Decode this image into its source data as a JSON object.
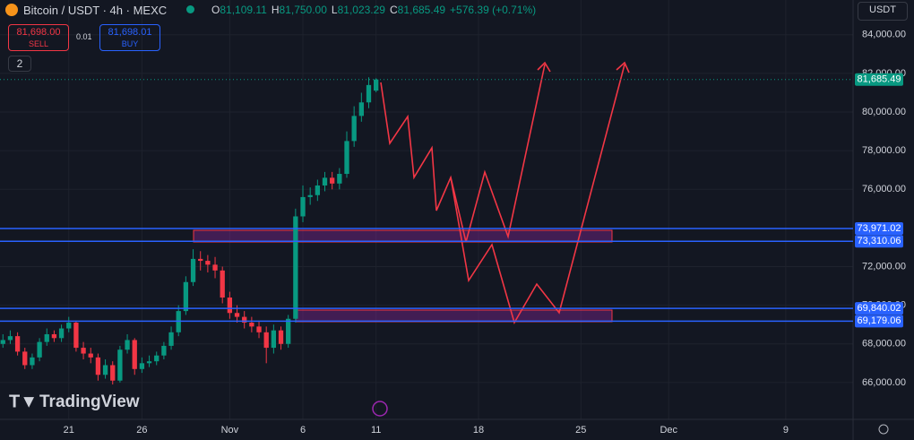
{
  "header": {
    "symbol": "Bitcoin / USDT · 4h · MEXC",
    "ohlc": [
      {
        "key": "O",
        "value": "81,109.11"
      },
      {
        "key": "H",
        "value": "81,750.00"
      },
      {
        "key": "L",
        "value": "81,023.29"
      },
      {
        "key": "C",
        "value": "81,685.49"
      }
    ],
    "change": "+576.39 (+0.71%)"
  },
  "trade": {
    "sell_price": "81,698.00",
    "sell": "SELL",
    "spread": "0.01",
    "buy_price": "81,698.01",
    "buy": "BUY"
  },
  "indicators_count": "2",
  "currency": "USDT",
  "watermark": "TradingView",
  "chart_data": {
    "type": "candlestick",
    "up_color": "#089981",
    "down_color": "#f23645",
    "x": [
      16.5,
      17,
      17.5,
      18,
      18.5,
      19,
      19.5,
      20,
      20.5,
      21,
      21.5,
      22,
      22.5,
      23,
      23.5,
      24,
      24.5,
      25,
      25.5,
      26,
      26.5,
      27,
      27.5,
      28,
      28.5,
      29,
      29.5,
      30,
      30.5,
      31,
      31.5,
      32,
      32.5,
      33,
      33.5,
      34,
      34.5,
      35,
      35.5,
      36,
      36.5,
      37,
      37.5,
      38,
      38.5,
      39,
      39.5,
      40,
      40.5,
      41,
      41.5,
      42
    ],
    "open": [
      68000,
      68200,
      68400,
      67600,
      66900,
      67300,
      68100,
      68500,
      68300,
      68800,
      69100,
      67800,
      67500,
      67300,
      66400,
      66900,
      66100,
      67700,
      68200,
      66700,
      67000,
      67100,
      67400,
      67900,
      68600,
      69700,
      71200,
      72400,
      72300,
      72100,
      71800,
      70400,
      69600,
      69400,
      69100,
      68900,
      68600,
      67800,
      68700,
      68000,
      69300,
      74600,
      75600,
      75700,
      76200,
      76600,
      76300,
      76800,
      78500,
      79800,
      80500,
      81109.11
    ],
    "high": [
      68500,
      68700,
      68600,
      67800,
      67500,
      68300,
      68800,
      68700,
      69000,
      69400,
      69200,
      68100,
      67800,
      67500,
      67200,
      67100,
      67900,
      68500,
      68300,
      67300,
      67400,
      67600,
      68100,
      68900,
      70000,
      71500,
      72900,
      72800,
      72600,
      72500,
      72000,
      70700,
      70000,
      69700,
      69400,
      69200,
      68900,
      69000,
      68900,
      69500,
      75000,
      76200,
      76100,
      76500,
      76900,
      76900,
      77100,
      79000,
      80300,
      81000,
      81800,
      81750
    ],
    "low": [
      67800,
      68000,
      67400,
      66700,
      66700,
      67100,
      67900,
      68100,
      68100,
      68600,
      67600,
      67200,
      67000,
      66100,
      66200,
      65900,
      66000,
      67500,
      66400,
      66500,
      66800,
      66900,
      67200,
      67700,
      68400,
      69500,
      71000,
      71800,
      71700,
      71400,
      70100,
      69300,
      69100,
      68800,
      68600,
      68300,
      67000,
      67500,
      67700,
      67800,
      69100,
      74300,
      75200,
      75400,
      75900,
      76000,
      76000,
      76600,
      78200,
      79500,
      80200,
      81023.29
    ],
    "close": [
      68200,
      68400,
      67600,
      66900,
      67300,
      68100,
      68500,
      68300,
      68800,
      69100,
      67800,
      67500,
      67300,
      66400,
      66900,
      66100,
      67700,
      68200,
      66700,
      67000,
      67100,
      67400,
      67900,
      68600,
      69700,
      71200,
      72400,
      72300,
      72100,
      71800,
      70400,
      69600,
      69400,
      69100,
      68900,
      68600,
      67800,
      68700,
      68000,
      69300,
      74600,
      75600,
      75700,
      76200,
      76600,
      76300,
      76800,
      78500,
      79800,
      80500,
      81400,
      81685.49
    ],
    "xlim": [
      16.3,
      74.6
    ],
    "ylim": [
      64000,
      85800
    ],
    "xticks": [
      21,
      26,
      {
        "value": 32,
        "label": "Nov"
      },
      {
        "value": 37,
        "label": "6"
      },
      {
        "value": 42,
        "label": "11"
      },
      {
        "value": 49,
        "label": "18"
      },
      {
        "value": 56,
        "label": "25"
      },
      {
        "value": 62,
        "label": "Dec"
      },
      {
        "value": 70,
        "label": "9"
      }
    ],
    "yticks": [
      {
        "value": 66000,
        "label": "66,000.00"
      },
      {
        "value": 68000,
        "label": "68,000.00"
      },
      {
        "value": 70000,
        "label": "70,000.00"
      },
      {
        "value": 72000,
        "label": "72,000.00"
      },
      {
        "value": 76000,
        "label": "76,000.00"
      },
      {
        "value": 78000,
        "label": "78,000.00"
      },
      {
        "value": 80000,
        "label": "80,000.00"
      },
      {
        "value": 82000,
        "label": "82,000.00"
      },
      {
        "value": 84000,
        "label": "84,000.00"
      }
    ],
    "price_lines": [
      {
        "value": 73971.02,
        "label": "73,971.02"
      },
      {
        "value": 73310.06,
        "label": "73,310.06"
      },
      {
        "value": 69840.02,
        "label": "69,840.02"
      },
      {
        "value": 69179.06,
        "label": "69,179.06"
      }
    ],
    "last_price": {
      "value": 81685.49,
      "label": "81,685.49"
    }
  }
}
